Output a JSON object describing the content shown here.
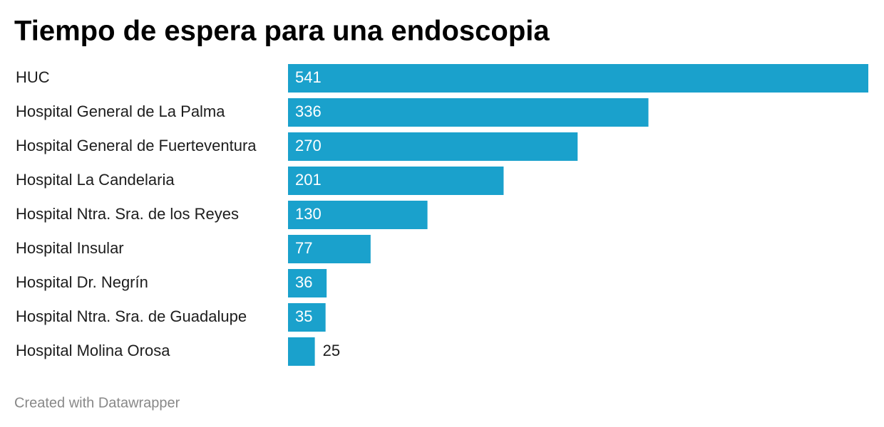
{
  "chart_data": {
    "type": "bar",
    "orientation": "horizontal",
    "title": "Tiempo de espera para una endoscopia",
    "categories": [
      "HUC",
      "Hospital General de La Palma",
      "Hospital General de Fuerteventura",
      "Hospital La Candelaria",
      "Hospital Ntra. Sra. de los Reyes",
      "Hospital Insular",
      "Hospital Dr. Negrín",
      "Hospital Ntra. Sra. de Guadalupe",
      "Hospital Molina Orosa"
    ],
    "values": [
      541,
      336,
      270,
      201,
      130,
      77,
      36,
      35,
      25
    ],
    "color": "#1aa1cc",
    "credit": "Created with Datawrapper"
  }
}
